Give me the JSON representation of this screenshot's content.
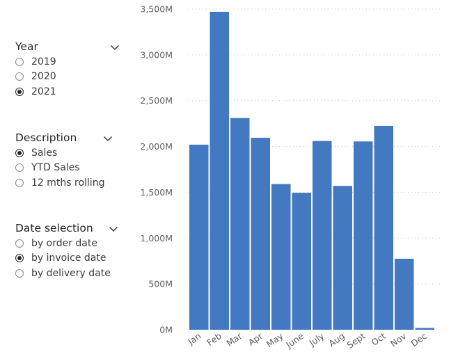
{
  "slicers": [
    {
      "title": "Year",
      "options": [
        {
          "label": "2019",
          "selected": false
        },
        {
          "label": "2020",
          "selected": false
        },
        {
          "label": "2021",
          "selected": true
        }
      ]
    },
    {
      "title": "Description",
      "options": [
        {
          "label": "Sales",
          "selected": true
        },
        {
          "label": "YTD Sales",
          "selected": false
        },
        {
          "label": "12 mths rolling",
          "selected": false
        }
      ]
    },
    {
      "title": "Date selection",
      "options": [
        {
          "label": "by order date",
          "selected": false
        },
        {
          "label": "by invoice date",
          "selected": true
        },
        {
          "label": "by delivery date",
          "selected": false
        }
      ]
    }
  ],
  "icons": {
    "dropdown": "chevron-down-icon"
  },
  "chart_data": {
    "type": "bar",
    "categories": [
      "Jan",
      "Feb",
      "Mar",
      "Apr",
      "May",
      "June",
      "July",
      "Aug",
      "Sept",
      "Oct",
      "Nov",
      "Dec"
    ],
    "values": [
      2020,
      3470,
      2310,
      2095,
      1590,
      1495,
      2060,
      1570,
      2055,
      2225,
      775,
      20
    ],
    "ylim": [
      0,
      3500
    ],
    "ytick_values": [
      0,
      500,
      1000,
      1500,
      2000,
      2500,
      3000,
      3500
    ],
    "ytick_labels": [
      "0M",
      "500M",
      "1,000M",
      "1,500M",
      "2,000M",
      "2,500M",
      "3,000M",
      "3,500M"
    ],
    "grid": true,
    "bar_color": "#4379c1",
    "grid_color": "#c8c6c4",
    "xlabel": "",
    "ylabel": "",
    "title": ""
  }
}
